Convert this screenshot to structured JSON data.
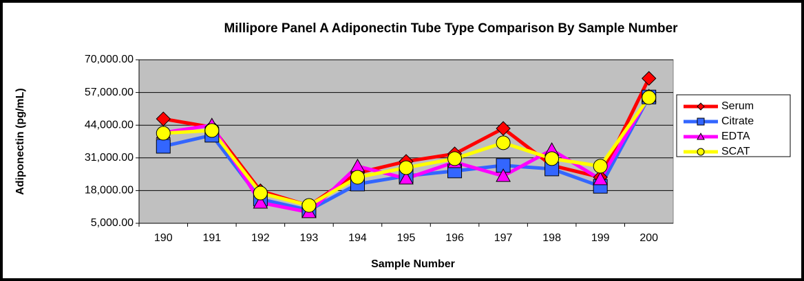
{
  "chart_data": {
    "type": "line",
    "title": "Millipore Panel A Adiponectin Tube Type Comparison By Sample Number",
    "x_label": "Sample Number",
    "y_label": "Adiponectin (pg/mL)",
    "categories": [
      "190",
      "191",
      "192",
      "193",
      "194",
      "195",
      "196",
      "197",
      "198",
      "199",
      "200"
    ],
    "series": [
      {
        "name": "Serum",
        "color": "#ff0000",
        "marker": "diamond",
        "values": [
          46500,
          43200,
          17900,
          12000,
          25000,
          29600,
          32600,
          42700,
          28000,
          23300,
          62600
        ]
      },
      {
        "name": "Citrate",
        "color": "#3366ff",
        "marker": "square",
        "values": [
          35600,
          40000,
          14600,
          10200,
          20600,
          23800,
          25800,
          28000,
          26600,
          19700,
          55200
        ]
      },
      {
        "name": "EDTA",
        "color": "#ff00ff",
        "marker": "triangle",
        "values": [
          41000,
          44000,
          13200,
          9400,
          27700,
          22800,
          29300,
          23800,
          34200,
          22500,
          55500
        ]
      },
      {
        "name": "SCAT",
        "color": "#ffff00",
        "marker": "circle",
        "values": [
          40800,
          41900,
          17000,
          12100,
          23300,
          27100,
          30700,
          37000,
          30700,
          27700,
          55000
        ]
      }
    ],
    "ylim": [
      5000,
      70000
    ],
    "yticks": [
      {
        "value": 5000,
        "label": "5,000.00"
      },
      {
        "value": 18000,
        "label": "18,000.00"
      },
      {
        "value": 31000,
        "label": "31,000.00"
      },
      {
        "value": 44000,
        "label": "44,000.00"
      },
      {
        "value": 57000,
        "label": "57,000.00"
      },
      {
        "value": 70000,
        "label": "70,000.00"
      }
    ],
    "grid": true,
    "legend": "right"
  }
}
